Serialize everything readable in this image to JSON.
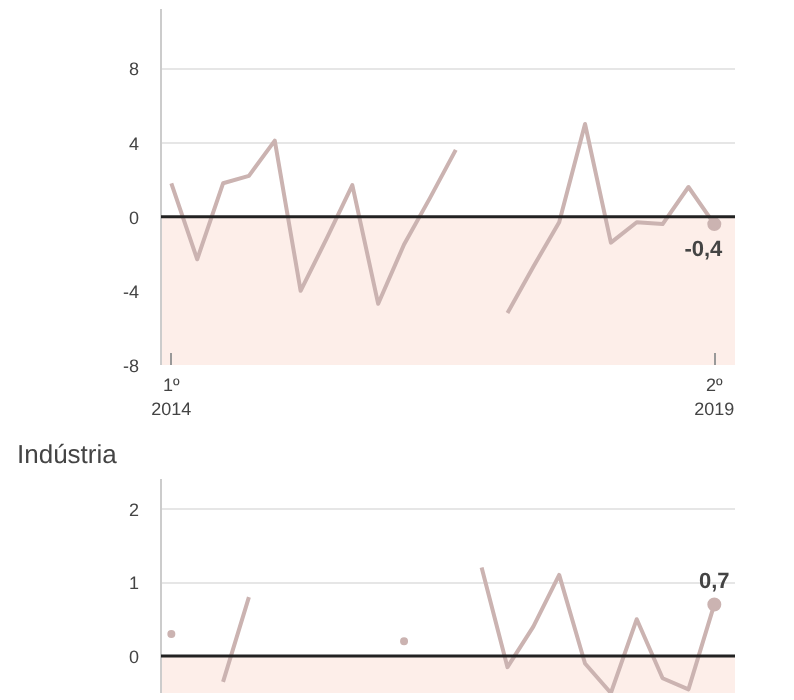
{
  "chart_data": [
    {
      "type": "line",
      "categories": [
        "1º\n2014",
        null,
        null,
        null,
        null,
        null,
        null,
        null,
        null,
        null,
        null,
        null,
        null,
        null,
        null,
        null,
        null,
        null,
        null,
        null,
        null,
        "2º\n2019"
      ],
      "series": [
        {
          "color": "#cbb3b1",
          "values": [
            1.8,
            -2.3,
            1.8,
            2.2,
            4.1,
            -4.0,
            -1.2,
            1.7,
            -4.7,
            -1.5,
            1.0,
            3.6,
            null,
            -5.2,
            -2.7,
            -0.3,
            5.0,
            -1.4,
            -0.3,
            -0.4,
            1.6,
            -0.4
          ],
          "value_labels": [
            null,
            null,
            null,
            null,
            null,
            null,
            null,
            null,
            null,
            null,
            null,
            null,
            null,
            null,
            null,
            null,
            null,
            null,
            null,
            null,
            null,
            "-0,4"
          ]
        }
      ],
      "ylim": [
        -8,
        11.2
      ],
      "yticks": [
        -8,
        -4,
        0,
        4,
        8
      ],
      "grid": "y",
      "ref_lines": [
        {
          "axis": "y",
          "value": 0,
          "color": "#222222"
        }
      ],
      "bands": [
        {
          "axis": "y",
          "from": -8,
          "to": 0,
          "color": "#fdeee9"
        }
      ]
    },
    {
      "type": "line",
      "title": "Indústria",
      "categories": [
        null,
        null,
        null,
        null,
        null,
        null,
        null,
        null,
        null,
        null,
        null,
        null,
        null,
        null,
        null,
        null,
        null,
        null,
        null,
        null,
        null,
        null
      ],
      "series": [
        {
          "color": "#cbb3b1",
          "values": [
            0.3,
            null,
            -0.35,
            0.8,
            null,
            null,
            null,
            null,
            null,
            0.2,
            null,
            null,
            1.2,
            -0.15,
            0.4,
            1.1,
            -0.1,
            -0.5,
            0.5,
            -0.3,
            -0.45,
            0.7
          ],
          "value_labels": [
            null,
            null,
            null,
            null,
            null,
            null,
            null,
            null,
            null,
            null,
            null,
            null,
            null,
            null,
            null,
            null,
            null,
            null,
            null,
            null,
            null,
            "0,7"
          ]
        }
      ],
      "ylim": [
        -0.5,
        2.4
      ],
      "yticks": [
        0,
        1,
        2
      ],
      "grid": "y",
      "tick_labels": "y",
      "ref_lines": [
        {
          "axis": "y",
          "value": 0,
          "color": "#222222"
        }
      ],
      "bands": [
        {
          "axis": "y",
          "from": -0.5,
          "to": 0,
          "color": "#fdeee9"
        }
      ]
    }
  ]
}
